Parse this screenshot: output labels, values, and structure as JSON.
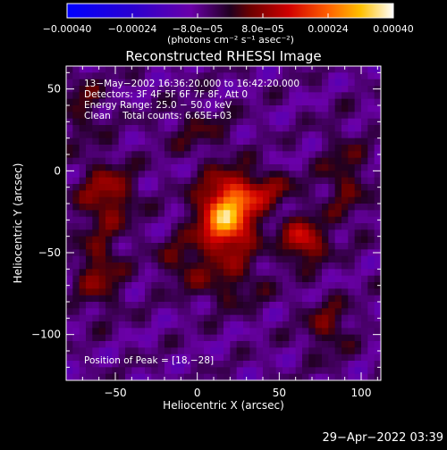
{
  "chart_data": {
    "type": "heatmap",
    "title": "Reconstructed RHESSI Image",
    "xlabel": "Heliocentric X (arcsec)",
    "ylabel": "Heliocentric Y (arcsec)",
    "xlim": [
      -80,
      112
    ],
    "ylim": [
      -128,
      64
    ],
    "xticks": [
      -50,
      0,
      50,
      100
    ],
    "xtick_labels": [
      "−50",
      "0",
      "50",
      "100"
    ],
    "yticks": [
      -100,
      -50,
      0,
      50
    ],
    "ytick_labels": [
      "−100",
      "−50",
      "0",
      "50"
    ],
    "colorbar": {
      "range": [
        -0.0004,
        0.0004
      ],
      "ticks": [
        -0.0004,
        -0.00024,
        -8e-05,
        8e-05,
        0.00024,
        0.0004
      ],
      "tick_labels": [
        "−0.00040",
        "−0.00024",
        "−8.0e−05",
        "8.0e−05",
        "0.00024",
        "0.00040"
      ],
      "unit_label": "(photons cm⁻² s⁻¹ asec⁻²)"
    },
    "annotations": [
      "13−May−2002 16:36:20.000 to 16:42:20.000",
      "Detectors: 3F 4F 5F 6F 7F 8F, Att 0",
      "Energy Range: 25.0 − 50.0 keV",
      "Clean    Total counts: 6.65E+03"
    ],
    "peak_label": "Position of Peak = [18,−28]",
    "peak": [
      18,
      -28
    ],
    "sources": [
      {
        "x": 18,
        "y": -28,
        "sx": 12,
        "sy": 16,
        "amp": 0.00038
      },
      {
        "x": 65,
        "y": -43,
        "sx": 9,
        "sy": 9,
        "amp": 0.00022
      },
      {
        "x": 40,
        "y": -12,
        "sx": 14,
        "sy": 8,
        "amp": 0.00013
      },
      {
        "x": -55,
        "y": -15,
        "sx": 12,
        "sy": 14,
        "amp": 0.00016
      },
      {
        "x": -60,
        "y": -62,
        "sx": 10,
        "sy": 16,
        "amp": 0.00013
      },
      {
        "x": -10,
        "y": -55,
        "sx": 10,
        "sy": 10,
        "amp": 0.0001
      },
      {
        "x": 20,
        "y": -70,
        "sx": 16,
        "sy": 10,
        "amp": 9e-05
      },
      {
        "x": 90,
        "y": -5,
        "sx": 10,
        "sy": 20,
        "amp": 0.0001
      },
      {
        "x": 80,
        "y": -95,
        "sx": 10,
        "sy": 12,
        "amp": 0.00011
      },
      {
        "x": -70,
        "y": 40,
        "sx": 10,
        "sy": 15,
        "amp": 8e-05
      },
      {
        "x": 0,
        "y": 25,
        "sx": 15,
        "sy": 10,
        "amp": 7e-05
      }
    ]
  },
  "timestamp": "29−Apr−2022 03:39"
}
